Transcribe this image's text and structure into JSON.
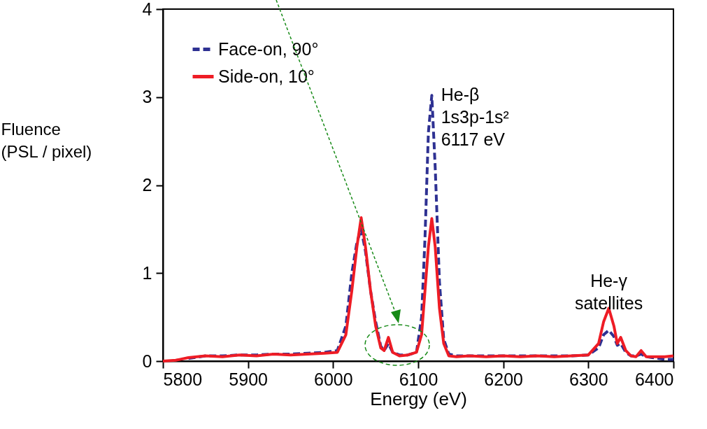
{
  "chart_data": {
    "type": "line",
    "xlabel": "Energy (eV)",
    "ylabel": "Fluence\n(PSL / pixel)",
    "x": [
      5800,
      5815,
      5830,
      5850,
      5870,
      5890,
      5910,
      5930,
      5950,
      5970,
      5990,
      6005,
      6015,
      6022,
      6028,
      6033,
      6038,
      6044,
      6050,
      6056,
      6060,
      6065,
      6070,
      6078,
      6088,
      6098,
      6104,
      6108,
      6112,
      6116,
      6120,
      6125,
      6130,
      6136,
      6145,
      6160,
      6180,
      6200,
      6220,
      6240,
      6260,
      6280,
      6300,
      6312,
      6318,
      6324,
      6330,
      6334,
      6338,
      6344,
      6350,
      6356,
      6362,
      6368,
      6375,
      6390,
      6400
    ],
    "series": [
      {
        "name": "Face-on, 90°",
        "color": "#2e3192",
        "line_style": "dashed",
        "values": [
          null,
          null,
          0.03,
          0.06,
          0.06,
          0.07,
          0.07,
          0.08,
          0.08,
          0.09,
          0.1,
          0.12,
          0.4,
          1.0,
          1.35,
          1.5,
          1.25,
          0.8,
          0.45,
          0.17,
          0.12,
          0.2,
          0.1,
          0.07,
          0.07,
          0.1,
          0.5,
          1.4,
          2.6,
          3.02,
          2.2,
          0.9,
          0.25,
          0.08,
          0.06,
          0.06,
          0.06,
          0.06,
          0.06,
          0.06,
          0.06,
          0.06,
          0.07,
          0.15,
          0.3,
          0.35,
          0.28,
          0.18,
          0.2,
          0.1,
          0.06,
          0.06,
          0.08,
          0.05,
          0.04,
          0.02,
          0.02
        ]
      },
      {
        "name": "Side-on, 10°",
        "color": "#ee1c25",
        "line_style": "solid",
        "values": [
          0,
          0.01,
          0.04,
          0.06,
          0.05,
          0.07,
          0.06,
          0.08,
          0.07,
          0.08,
          0.09,
          0.1,
          0.3,
          0.8,
          1.3,
          1.63,
          1.3,
          0.8,
          0.4,
          0.15,
          0.12,
          0.27,
          0.1,
          0.06,
          0.07,
          0.1,
          0.3,
          0.8,
          1.3,
          1.62,
          1.3,
          0.6,
          0.2,
          0.06,
          0.05,
          0.06,
          0.05,
          0.06,
          0.05,
          0.06,
          0.05,
          0.06,
          0.07,
          0.2,
          0.45,
          0.6,
          0.4,
          0.2,
          0.27,
          0.12,
          0.06,
          0.05,
          0.12,
          0.05,
          0.05,
          0.05,
          0.06
        ]
      }
    ],
    "annotations": [
      {
        "text": "He-β\n1s3p-1s²\n6117 eV",
        "x": 6117,
        "y": 3.02
      },
      {
        "text": "He-γ\nsatellites",
        "x": 6324,
        "y": 0.6
      }
    ],
    "xlim": [
      5800,
      6400
    ],
    "xticks": [
      5800,
      5900,
      6000,
      6100,
      6200,
      6300,
      6400
    ],
    "ylim": [
      0,
      4
    ],
    "yticks": [
      0,
      1,
      2,
      3,
      4
    ],
    "grid": false,
    "legend": "top left"
  }
}
